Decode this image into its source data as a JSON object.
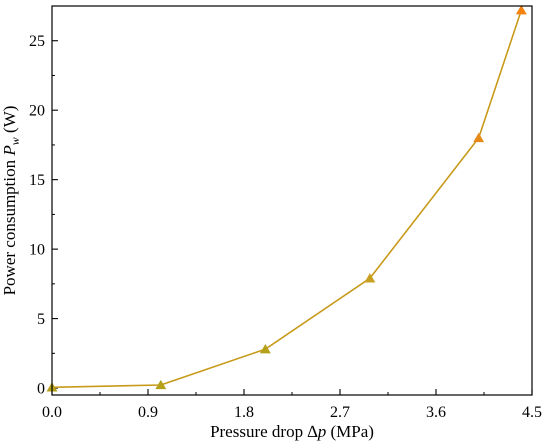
{
  "chart_data": {
    "type": "line",
    "title": "",
    "xlabel": {
      "prefix": "Pressure drop ",
      "symbol_main": "∆",
      "symbol_italic": "p",
      "suffix": " (MPa)"
    },
    "ylabel": {
      "prefix": "Power consumption ",
      "symbol_italic": "P",
      "subscript": "w",
      "suffix": " (W)"
    },
    "xlim": [
      0,
      4.5
    ],
    "ylim": [
      -0.5,
      27.5
    ],
    "x_ticks": [
      0.0,
      0.9,
      1.8,
      2.7,
      3.6,
      4.5
    ],
    "x_tick_labels": [
      "0.0",
      "0.9",
      "1.8",
      "2.7",
      "3.6",
      "4.5"
    ],
    "y_ticks": [
      0,
      5,
      10,
      15,
      20,
      25
    ],
    "y_tick_labels": [
      "0",
      "5",
      "10",
      "15",
      "20",
      "25"
    ],
    "grid": false,
    "line_color": "#c89a1a",
    "marker": "triangle",
    "marker_colors": [
      "#b5a01a",
      "#b5a01a",
      "#b5a01a",
      "#c8a020",
      "#e88a1a",
      "#f5820f"
    ],
    "series": [
      {
        "x": [
          0.0,
          1.02,
          2.0,
          2.98,
          4.0,
          4.4
        ],
        "y": [
          0.05,
          0.22,
          2.8,
          7.9,
          18.0,
          27.2
        ]
      }
    ]
  }
}
